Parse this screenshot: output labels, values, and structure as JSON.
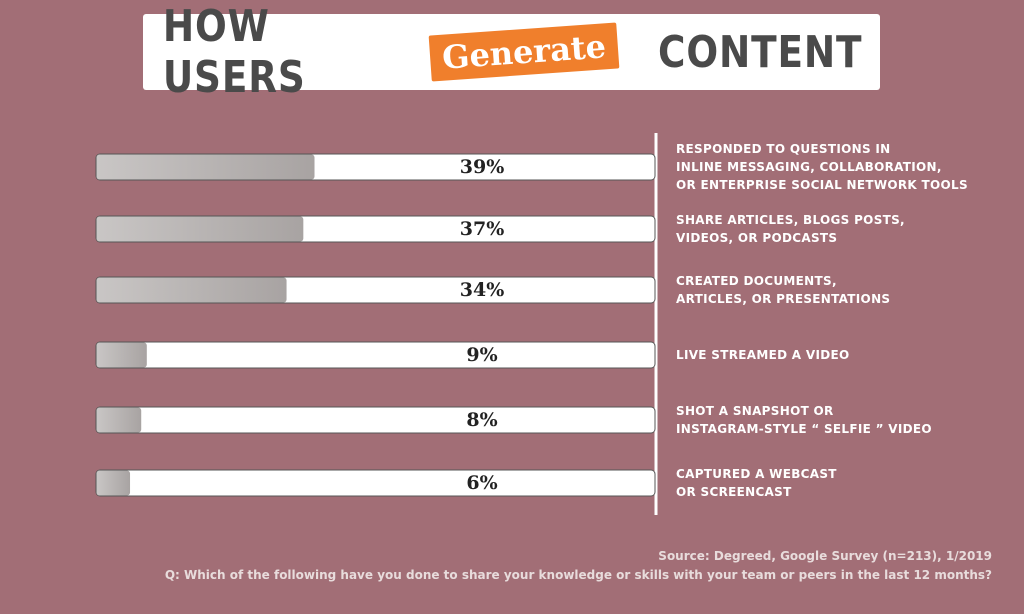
{
  "chart_data": {
    "type": "hbar",
    "title": {
      "before": "HOW USERS",
      "highlight": "Generate",
      "after": "CONTENT"
    },
    "categories": [
      "RESPONDED TO QUESTIONS IN\nINLINE MESSAGING, COLLABORATION,\nOR ENTERPRISE SOCIAL NETWORK TOOLS",
      "SHARE ARTICLES, BLOGS POSTS,\nVIDEOS, OR PODCASTS",
      "CREATED DOCUMENTS,\nARTICLES, OR PRESENTATIONS",
      "LIVE STREAMED A VIDEO",
      "SHOT A SNAPSHOT OR\nINSTAGRAM-STYLE “ SELFIE ” VIDEO",
      "CAPTURED A WEBCAST\nOR SCREENCAST"
    ],
    "values": [
      39,
      37,
      34,
      9,
      8,
      6
    ],
    "value_labels": [
      "39%",
      "37%",
      "34%",
      "9%",
      "8%",
      "6%"
    ],
    "xlim": [
      0,
      100
    ],
    "color": "#bfbcbb",
    "source": "Source: Degreed, Google Survey (n=213), 1/2019",
    "question": "Q: Which of the following have you done to share your knowledge or skills with your team or peers in the last 12 months?"
  }
}
